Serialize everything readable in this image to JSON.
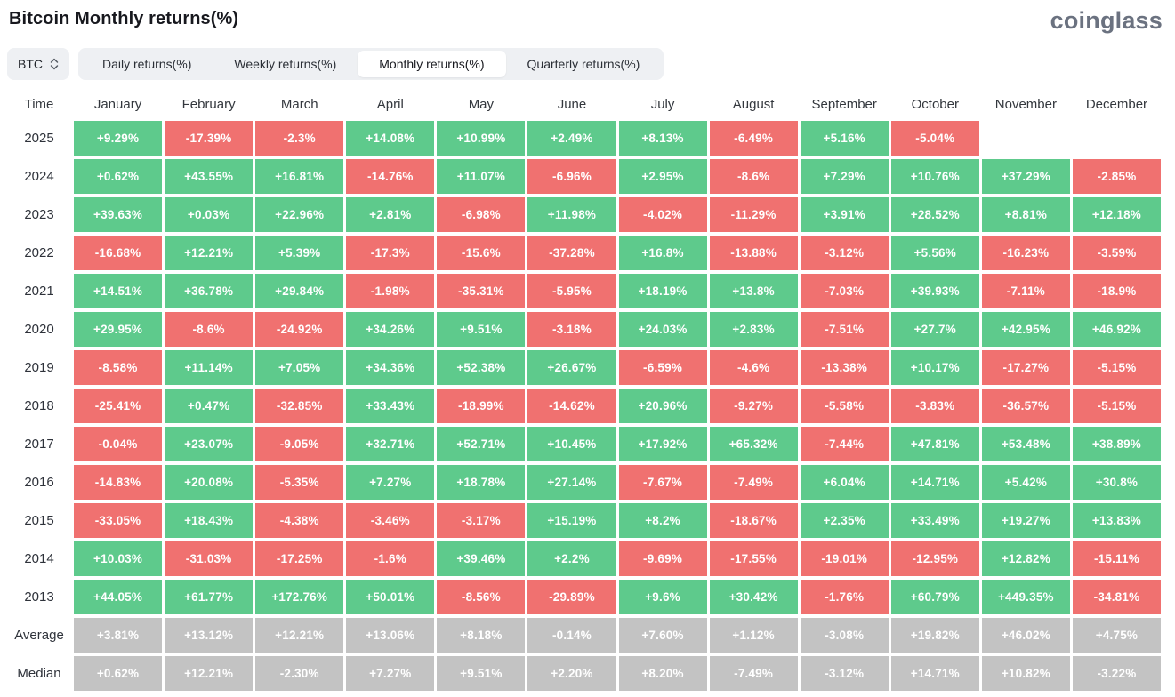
{
  "header": {
    "title": "Bitcoin Monthly returns(%)",
    "logo": "coinglass"
  },
  "controls": {
    "coin_selector": {
      "value": "BTC",
      "icon": "up-down-chevron-icon"
    },
    "tabs": [
      {
        "label": "Daily returns(%)",
        "active": false
      },
      {
        "label": "Weekly returns(%)",
        "active": false
      },
      {
        "label": "Monthly returns(%)",
        "active": true
      },
      {
        "label": "Quarterly returns(%)",
        "active": false
      }
    ]
  },
  "colors": {
    "positive": "#5ECA8C",
    "negative": "#F07170",
    "neutral": "#C3C3C3",
    "cell_text": "#FFFFFF",
    "tab_bar_bg": "#EEF0F3",
    "active_tab_bg": "#FFFFFF",
    "logo_gray": "#6B7280"
  },
  "table": {
    "time_label": "Time",
    "months": [
      "January",
      "February",
      "March",
      "April",
      "May",
      "June",
      "July",
      "August",
      "September",
      "October",
      "November",
      "December"
    ],
    "rows": [
      {
        "label": "2025",
        "type": "year",
        "values": [
          "+9.29%",
          "-17.39%",
          "-2.3%",
          "+14.08%",
          "+10.99%",
          "+2.49%",
          "+8.13%",
          "-6.49%",
          "+5.16%",
          "-5.04%",
          "",
          ""
        ]
      },
      {
        "label": "2024",
        "type": "year",
        "values": [
          "+0.62%",
          "+43.55%",
          "+16.81%",
          "-14.76%",
          "+11.07%",
          "-6.96%",
          "+2.95%",
          "-8.6%",
          "+7.29%",
          "+10.76%",
          "+37.29%",
          "-2.85%"
        ]
      },
      {
        "label": "2023",
        "type": "year",
        "values": [
          "+39.63%",
          "+0.03%",
          "+22.96%",
          "+2.81%",
          "-6.98%",
          "+11.98%",
          "-4.02%",
          "-11.29%",
          "+3.91%",
          "+28.52%",
          "+8.81%",
          "+12.18%"
        ]
      },
      {
        "label": "2022",
        "type": "year",
        "values": [
          "-16.68%",
          "+12.21%",
          "+5.39%",
          "-17.3%",
          "-15.6%",
          "-37.28%",
          "+16.8%",
          "-13.88%",
          "-3.12%",
          "+5.56%",
          "-16.23%",
          "-3.59%"
        ]
      },
      {
        "label": "2021",
        "type": "year",
        "values": [
          "+14.51%",
          "+36.78%",
          "+29.84%",
          "-1.98%",
          "-35.31%",
          "-5.95%",
          "+18.19%",
          "+13.8%",
          "-7.03%",
          "+39.93%",
          "-7.11%",
          "-18.9%"
        ]
      },
      {
        "label": "2020",
        "type": "year",
        "values": [
          "+29.95%",
          "-8.6%",
          "-24.92%",
          "+34.26%",
          "+9.51%",
          "-3.18%",
          "+24.03%",
          "+2.83%",
          "-7.51%",
          "+27.7%",
          "+42.95%",
          "+46.92%"
        ]
      },
      {
        "label": "2019",
        "type": "year",
        "values": [
          "-8.58%",
          "+11.14%",
          "+7.05%",
          "+34.36%",
          "+52.38%",
          "+26.67%",
          "-6.59%",
          "-4.6%",
          "-13.38%",
          "+10.17%",
          "-17.27%",
          "-5.15%"
        ]
      },
      {
        "label": "2018",
        "type": "year",
        "values": [
          "-25.41%",
          "+0.47%",
          "-32.85%",
          "+33.43%",
          "-18.99%",
          "-14.62%",
          "+20.96%",
          "-9.27%",
          "-5.58%",
          "-3.83%",
          "-36.57%",
          "-5.15%"
        ]
      },
      {
        "label": "2017",
        "type": "year",
        "values": [
          "-0.04%",
          "+23.07%",
          "-9.05%",
          "+32.71%",
          "+52.71%",
          "+10.45%",
          "+17.92%",
          "+65.32%",
          "-7.44%",
          "+47.81%",
          "+53.48%",
          "+38.89%"
        ]
      },
      {
        "label": "2016",
        "type": "year",
        "values": [
          "-14.83%",
          "+20.08%",
          "-5.35%",
          "+7.27%",
          "+18.78%",
          "+27.14%",
          "-7.67%",
          "-7.49%",
          "+6.04%",
          "+14.71%",
          "+5.42%",
          "+30.8%"
        ]
      },
      {
        "label": "2015",
        "type": "year",
        "values": [
          "-33.05%",
          "+18.43%",
          "-4.38%",
          "-3.46%",
          "-3.17%",
          "+15.19%",
          "+8.2%",
          "-18.67%",
          "+2.35%",
          "+33.49%",
          "+19.27%",
          "+13.83%"
        ]
      },
      {
        "label": "2014",
        "type": "year",
        "values": [
          "+10.03%",
          "-31.03%",
          "-17.25%",
          "-1.6%",
          "+39.46%",
          "+2.2%",
          "-9.69%",
          "-17.55%",
          "-19.01%",
          "-12.95%",
          "+12.82%",
          "-15.11%"
        ]
      },
      {
        "label": "2013",
        "type": "year",
        "values": [
          "+44.05%",
          "+61.77%",
          "+172.76%",
          "+50.01%",
          "-8.56%",
          "-29.89%",
          "+9.6%",
          "+30.42%",
          "-1.76%",
          "+60.79%",
          "+449.35%",
          "-34.81%"
        ]
      },
      {
        "label": "Average",
        "type": "stat",
        "values": [
          "+3.81%",
          "+13.12%",
          "+12.21%",
          "+13.06%",
          "+8.18%",
          "-0.14%",
          "+7.60%",
          "+1.12%",
          "-3.08%",
          "+19.82%",
          "+46.02%",
          "+4.75%"
        ]
      },
      {
        "label": "Median",
        "type": "stat",
        "values": [
          "+0.62%",
          "+12.21%",
          "-2.30%",
          "+7.27%",
          "+9.51%",
          "+2.20%",
          "+8.20%",
          "-7.49%",
          "-3.12%",
          "+14.71%",
          "+10.82%",
          "-3.22%"
        ]
      }
    ]
  }
}
